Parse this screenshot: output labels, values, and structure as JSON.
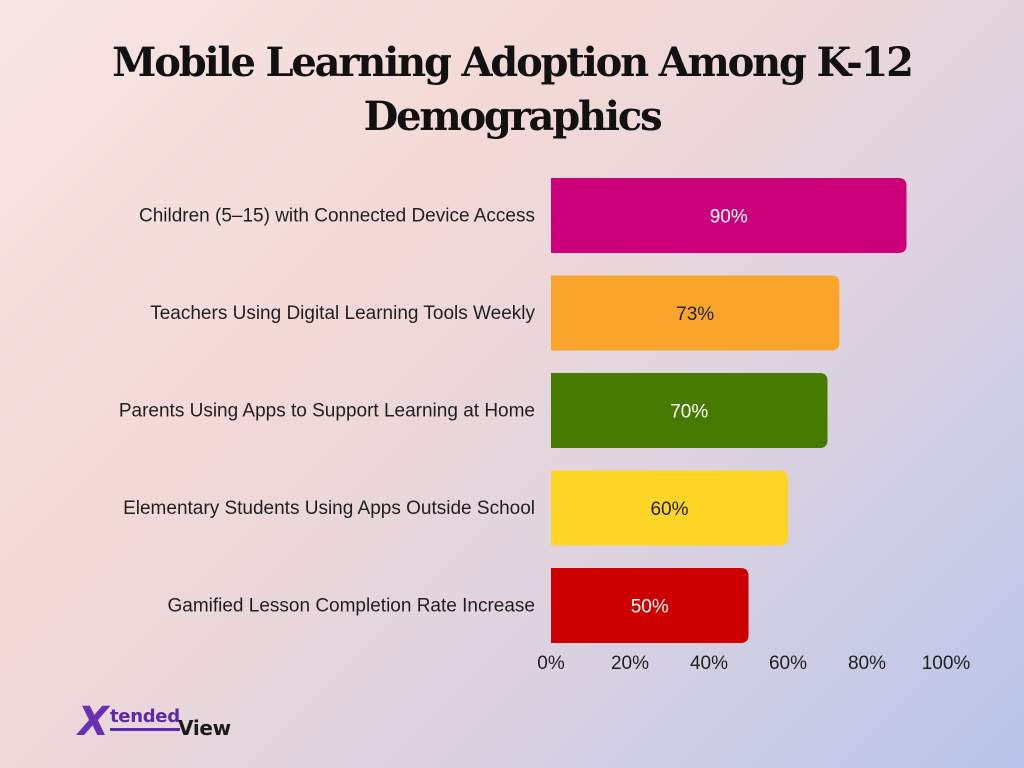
{
  "chart_data": {
    "type": "bar",
    "orientation": "horizontal",
    "title": "Mobile Learning Adoption Among K-12 Demographics",
    "categories": [
      "Children (5–15) with Connected Device Access",
      "Teachers Using Digital Learning Tools Weekly",
      "Parents Using Apps to Support Learning at Home",
      "Elementary Students Using Apps Outside School",
      "Gamified Lesson Completion Rate Increase"
    ],
    "values": [
      90,
      73,
      70,
      60,
      50
    ],
    "data_labels": [
      "90%",
      "73%",
      "70%",
      "60%",
      "50%"
    ],
    "colors": [
      "#cc007a",
      "#f9a52b",
      "#477a00",
      "#fdd527",
      "#cc0000"
    ],
    "label_colors": [
      "#ffffff",
      "#222222",
      "#ffffff",
      "#222222",
      "#ffffff"
    ],
    "xlim": [
      0,
      100
    ],
    "x_ticks": [
      0,
      20,
      40,
      60,
      80,
      100
    ],
    "x_tick_labels": [
      "0%",
      "20%",
      "40%",
      "60%",
      "80%",
      "100%"
    ],
    "xlabel": "",
    "ylabel": "",
    "grid": false,
    "legend": "none"
  },
  "branding": {
    "logo_mark": "X",
    "logo_part1": "tended",
    "logo_part2": "View"
  }
}
